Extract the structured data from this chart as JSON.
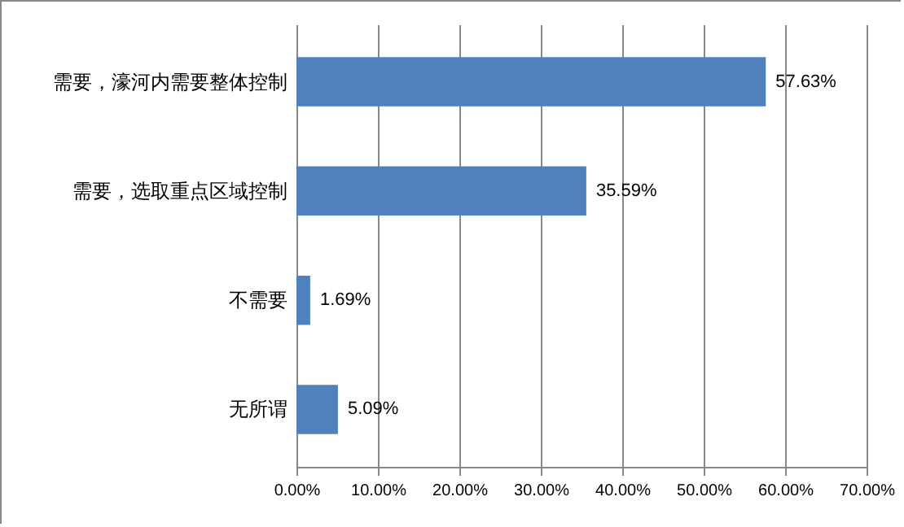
{
  "chart_data": {
    "type": "bar",
    "orientation": "horizontal",
    "categories": [
      "需要，濠河内需要整体控制",
      "需要，选取重点区域控制",
      "不需要",
      "无所谓"
    ],
    "values": [
      57.63,
      35.59,
      1.69,
      5.09
    ],
    "value_labels": [
      "57.63%",
      "35.59%",
      "1.69%",
      "5.09%"
    ],
    "color": "#4f81bd",
    "xlim": [
      0,
      70
    ],
    "xticks": [
      {
        "value": 0,
        "label": "0.00%"
      },
      {
        "value": 10,
        "label": "10.00%"
      },
      {
        "value": 20,
        "label": "20.00%"
      },
      {
        "value": 30,
        "label": "30.00%"
      },
      {
        "value": 40,
        "label": "40.00%"
      },
      {
        "value": 50,
        "label": "50.00%"
      },
      {
        "value": 60,
        "label": "60.00%"
      },
      {
        "value": 70,
        "label": "70.00%"
      }
    ],
    "grid": "x"
  }
}
